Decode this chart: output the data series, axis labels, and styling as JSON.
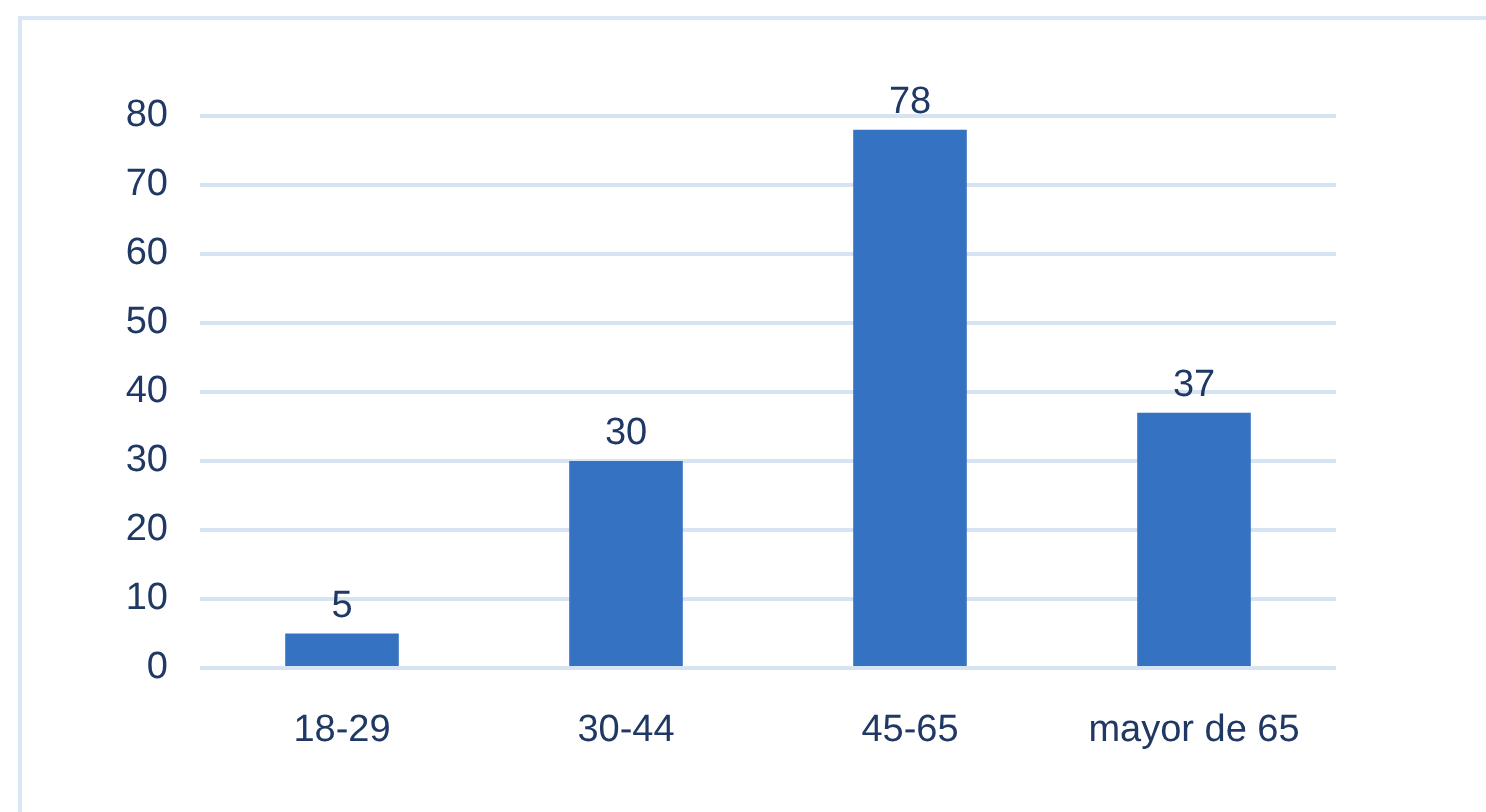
{
  "chart_data": {
    "type": "bar",
    "categories": [
      "18-29",
      "30-44",
      "45-65",
      "mayor de 65"
    ],
    "values": [
      5,
      30,
      78,
      37
    ],
    "color": "#3672c2",
    "ylim": [
      0,
      80
    ],
    "yticks": [
      0,
      10,
      20,
      30,
      40,
      50,
      60,
      70,
      80
    ],
    "grid": "y",
    "data_labels": true
  }
}
